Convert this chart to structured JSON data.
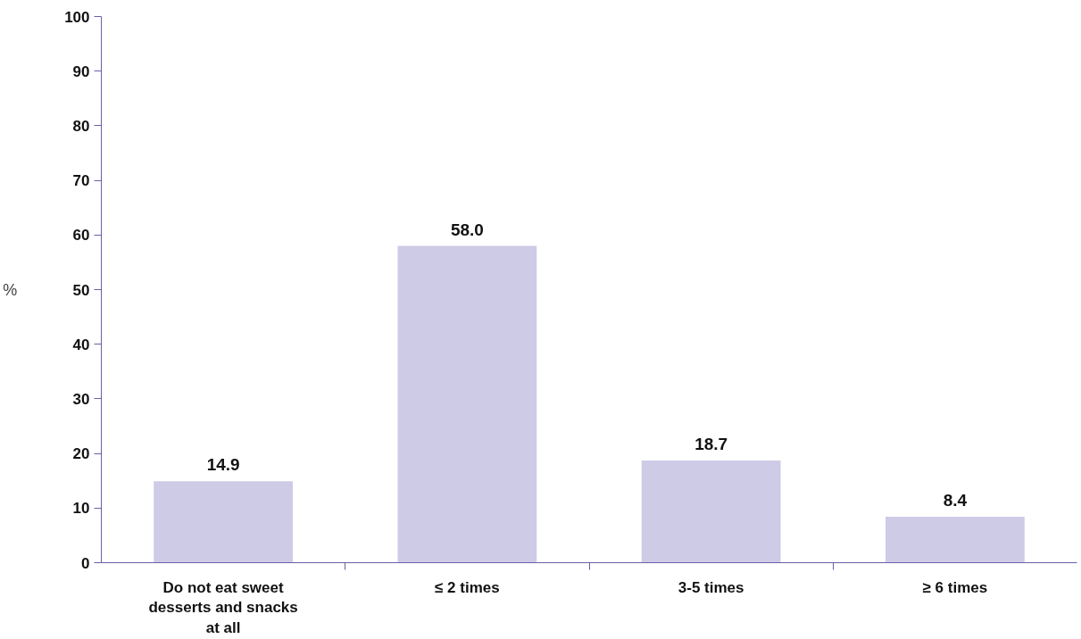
{
  "chart_data": {
    "type": "bar",
    "ylabel": "%",
    "categories": [
      "Do not eat sweet desserts and snacks at all",
      "≤ 2 times",
      "3-5 times",
      "≥ 6 times"
    ],
    "values": [
      14.9,
      58.0,
      18.7,
      8.4
    ],
    "color": "#cdcbe6",
    "ylim": [
      0,
      100
    ],
    "yticks": [
      0,
      10,
      20,
      30,
      40,
      50,
      60,
      70,
      80,
      90,
      100
    ],
    "value_labels": [
      "14.9",
      "58.0",
      "18.7",
      "8.4"
    ],
    "grid": false
  }
}
